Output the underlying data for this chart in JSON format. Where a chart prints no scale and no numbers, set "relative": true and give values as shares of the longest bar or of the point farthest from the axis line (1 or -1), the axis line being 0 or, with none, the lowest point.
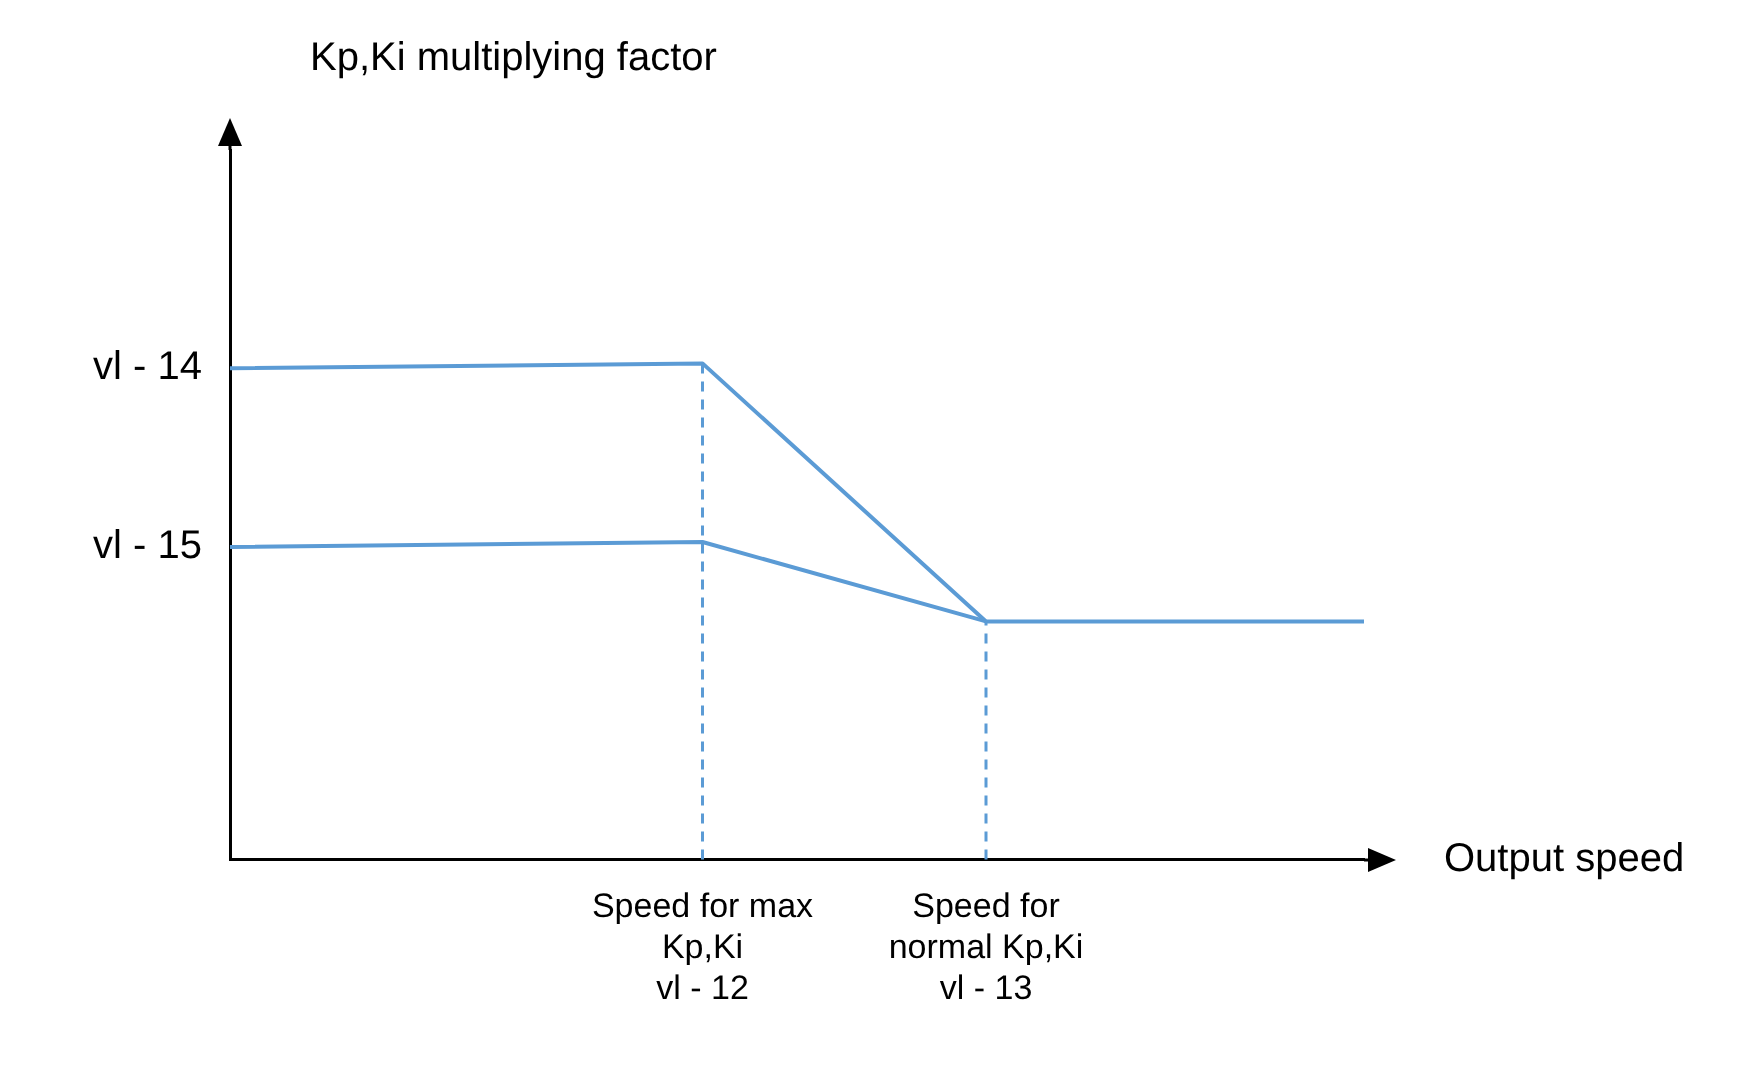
{
  "chart_data": {
    "type": "line",
    "relative": true,
    "xlabel": "Output speed",
    "categories": [
      null,
      null,
      null,
      null,
      null,
      "Speed for max Kp,Ki\nvl - 12",
      null,
      null,
      "Speed for normal Kp,Ki\nvl - 13",
      null,
      null,
      null,
      null
    ],
    "annotations": [
      "vl - 14",
      "vl - 15",
      "Kp,Ki multiplying factor"
    ],
    "grid": false,
    "legend": false,
    "marker": "none",
    "line_style": "solid",
    "series": [
      {
        "color": "#5b9bd5",
        "values": [
          0.99,
          null,
          null,
          null,
          null,
          1.0,
          null,
          null,
          0.48,
          null,
          null,
          null,
          0.48
        ]
      },
      {
        "color": "#5b9bd5",
        "values": [
          0.63,
          null,
          null,
          null,
          null,
          0.64,
          null,
          null,
          0.48,
          null,
          null,
          null,
          null
        ]
      }
    ],
    "ref_lines": [
      {
        "axis": "x",
        "value": "Speed for max Kp,Ki\nvl - 12",
        "color": "#5b9bd5",
        "line_style": "dashed"
      },
      {
        "axis": "x",
        "value": "Speed for normal Kp,Ki\nvl - 13",
        "color": "#5b9bd5",
        "line_style": "dashed"
      }
    ]
  }
}
